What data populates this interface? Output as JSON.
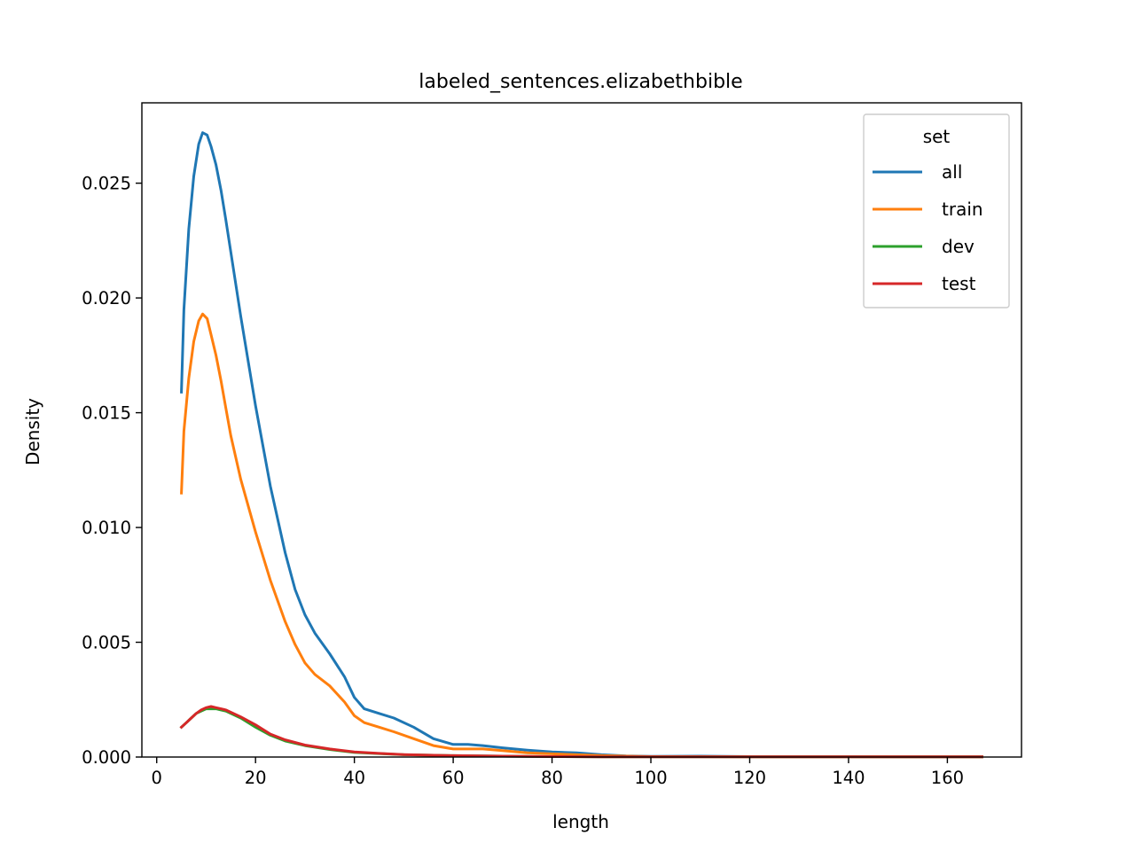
{
  "chart_data": {
    "type": "line",
    "title": "labeled_sentences.elizabethbible",
    "xlabel": "length",
    "ylabel": "Density",
    "xlim": [
      -3,
      175
    ],
    "ylim": [
      0,
      0.0285
    ],
    "x_ticks": [
      0,
      20,
      40,
      60,
      80,
      100,
      120,
      140,
      160
    ],
    "x_tick_labels": [
      "0",
      "20",
      "40",
      "60",
      "80",
      "100",
      "120",
      "140",
      "160"
    ],
    "y_ticks": [
      0,
      0.005,
      0.01,
      0.015,
      0.02,
      0.025
    ],
    "y_tick_labels": [
      "0.000",
      "0.005",
      "0.010",
      "0.015",
      "0.020",
      "0.025"
    ],
    "grid": false,
    "legend": {
      "title": "set",
      "placement": "upper-right"
    },
    "series": [
      {
        "name": "all",
        "color": "#1f77b4",
        "x": [
          5,
          5.5,
          6.5,
          7.5,
          8.5,
          9.3,
          10.2,
          11,
          12,
          13,
          14,
          15,
          17,
          20,
          23,
          26,
          28,
          30,
          32,
          35,
          38,
          40,
          42,
          45,
          48,
          52,
          56,
          60,
          63,
          66,
          70,
          75,
          80,
          85,
          90,
          95,
          100,
          110,
          120,
          130,
          140,
          150,
          160,
          167
        ],
        "values": [
          0.0159,
          0.0195,
          0.023,
          0.0253,
          0.0267,
          0.0272,
          0.0271,
          0.0266,
          0.0258,
          0.0247,
          0.0234,
          0.022,
          0.0192,
          0.0153,
          0.0118,
          0.0089,
          0.0073,
          0.0062,
          0.0054,
          0.0045,
          0.0035,
          0.0026,
          0.0021,
          0.0019,
          0.0017,
          0.0013,
          0.0008,
          0.00055,
          0.00055,
          0.0005,
          0.0004,
          0.0003,
          0.00022,
          0.00018,
          0.0001,
          5e-05,
          3e-05,
          4e-05,
          2e-05,
          2e-05,
          2e-05,
          1e-05,
          1e-05,
          1e-05
        ]
      },
      {
        "name": "train",
        "color": "#ff7f0e",
        "x": [
          5,
          5.5,
          6.5,
          7.5,
          8.5,
          9.3,
          10.2,
          11,
          12,
          13,
          14,
          15,
          17,
          20,
          23,
          26,
          28,
          30,
          32,
          35,
          38,
          40,
          42,
          45,
          48,
          52,
          56,
          60,
          63,
          66,
          70,
          75,
          80,
          85,
          90,
          95,
          100,
          110,
          120,
          130,
          140,
          150,
          160,
          167
        ],
        "values": [
          0.0115,
          0.0142,
          0.0165,
          0.0181,
          0.019,
          0.0193,
          0.0191,
          0.0184,
          0.0175,
          0.0164,
          0.0152,
          0.014,
          0.0121,
          0.0098,
          0.0077,
          0.0059,
          0.0049,
          0.0041,
          0.0036,
          0.0031,
          0.0024,
          0.0018,
          0.0015,
          0.0013,
          0.0011,
          0.0008,
          0.0005,
          0.00035,
          0.00035,
          0.00035,
          0.00028,
          0.00018,
          0.00014,
          0.0001,
          6e-05,
          4e-05,
          2e-05,
          2e-05,
          1e-05,
          1e-05,
          1e-05,
          1e-05,
          1e-05,
          1e-05
        ]
      },
      {
        "name": "dev",
        "color": "#2ca02c",
        "x": [
          5,
          6,
          7,
          8,
          9,
          10,
          11,
          12,
          13,
          14,
          15,
          17,
          20,
          23,
          26,
          30,
          35,
          40,
          45,
          50,
          55,
          60,
          70,
          80,
          90,
          100,
          120,
          140,
          160,
          167
        ],
        "values": [
          0.0013,
          0.0015,
          0.0017,
          0.0019,
          0.002,
          0.0021,
          0.0021,
          0.0021,
          0.00205,
          0.002,
          0.0019,
          0.0017,
          0.0013,
          0.00095,
          0.0007,
          0.0005,
          0.00033,
          0.0002,
          0.00015,
          0.0001,
          8e-05,
          6e-05,
          4e-05,
          2e-05,
          1e-05,
          1e-05,
          1e-05,
          1e-05,
          1e-05,
          1e-05
        ]
      },
      {
        "name": "test",
        "color": "#d62728",
        "x": [
          5,
          6,
          7,
          8,
          9,
          10,
          11,
          12,
          13,
          14,
          15,
          17,
          20,
          23,
          26,
          30,
          35,
          40,
          45,
          50,
          55,
          60,
          70,
          80,
          90,
          100,
          120,
          140,
          160,
          167
        ],
        "values": [
          0.0013,
          0.0015,
          0.0017,
          0.0019,
          0.00205,
          0.00215,
          0.0022,
          0.00215,
          0.0021,
          0.00205,
          0.00195,
          0.00175,
          0.0014,
          0.001,
          0.00075,
          0.00052,
          0.00035,
          0.00022,
          0.00016,
          0.00011,
          8e-05,
          6e-05,
          4e-05,
          2e-05,
          1e-05,
          1e-05,
          1e-05,
          1e-05,
          1e-05,
          1e-05
        ]
      }
    ]
  }
}
